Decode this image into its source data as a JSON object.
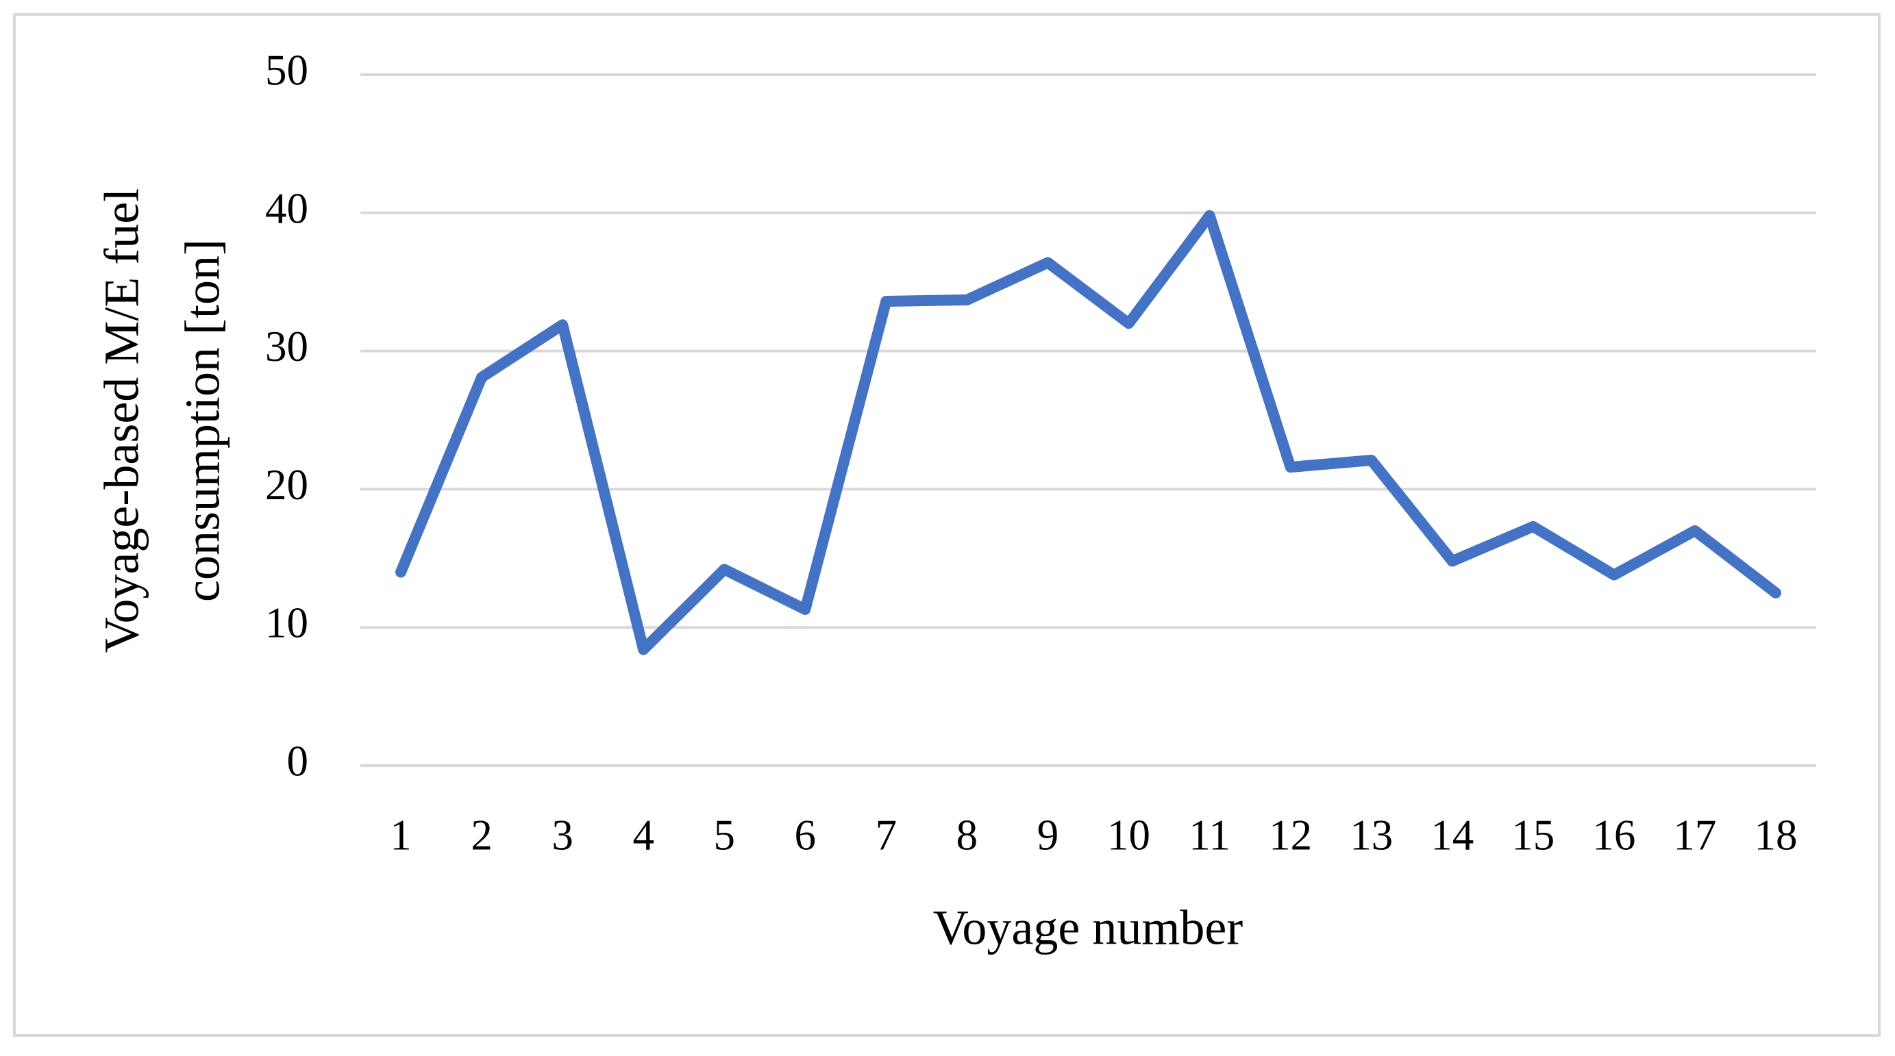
{
  "chart_data": {
    "type": "line",
    "x_label": "Voyage number",
    "y_label_lines": [
      "Voyage-based M/E fuel",
      "consumption [ton]"
    ],
    "categories": [
      "1",
      "2",
      "3",
      "4",
      "5",
      "6",
      "7",
      "8",
      "9",
      "10",
      "11",
      "12",
      "13",
      "14",
      "15",
      "16",
      "17",
      "18"
    ],
    "series": [
      {
        "name": "M/E fuel consumption",
        "color": "#4472c4",
        "values": [
          14,
          28.1,
          31.9,
          8.4,
          14.2,
          11.3,
          33.6,
          33.7,
          36.4,
          32,
          39.8,
          21.6,
          22.1,
          14.8,
          17.3,
          13.8,
          17,
          12.5
        ]
      }
    ],
    "ylim": [
      0,
      50
    ],
    "yticks": [
      0,
      10,
      20,
      30,
      40,
      50
    ],
    "grid": true,
    "legend": false
  }
}
